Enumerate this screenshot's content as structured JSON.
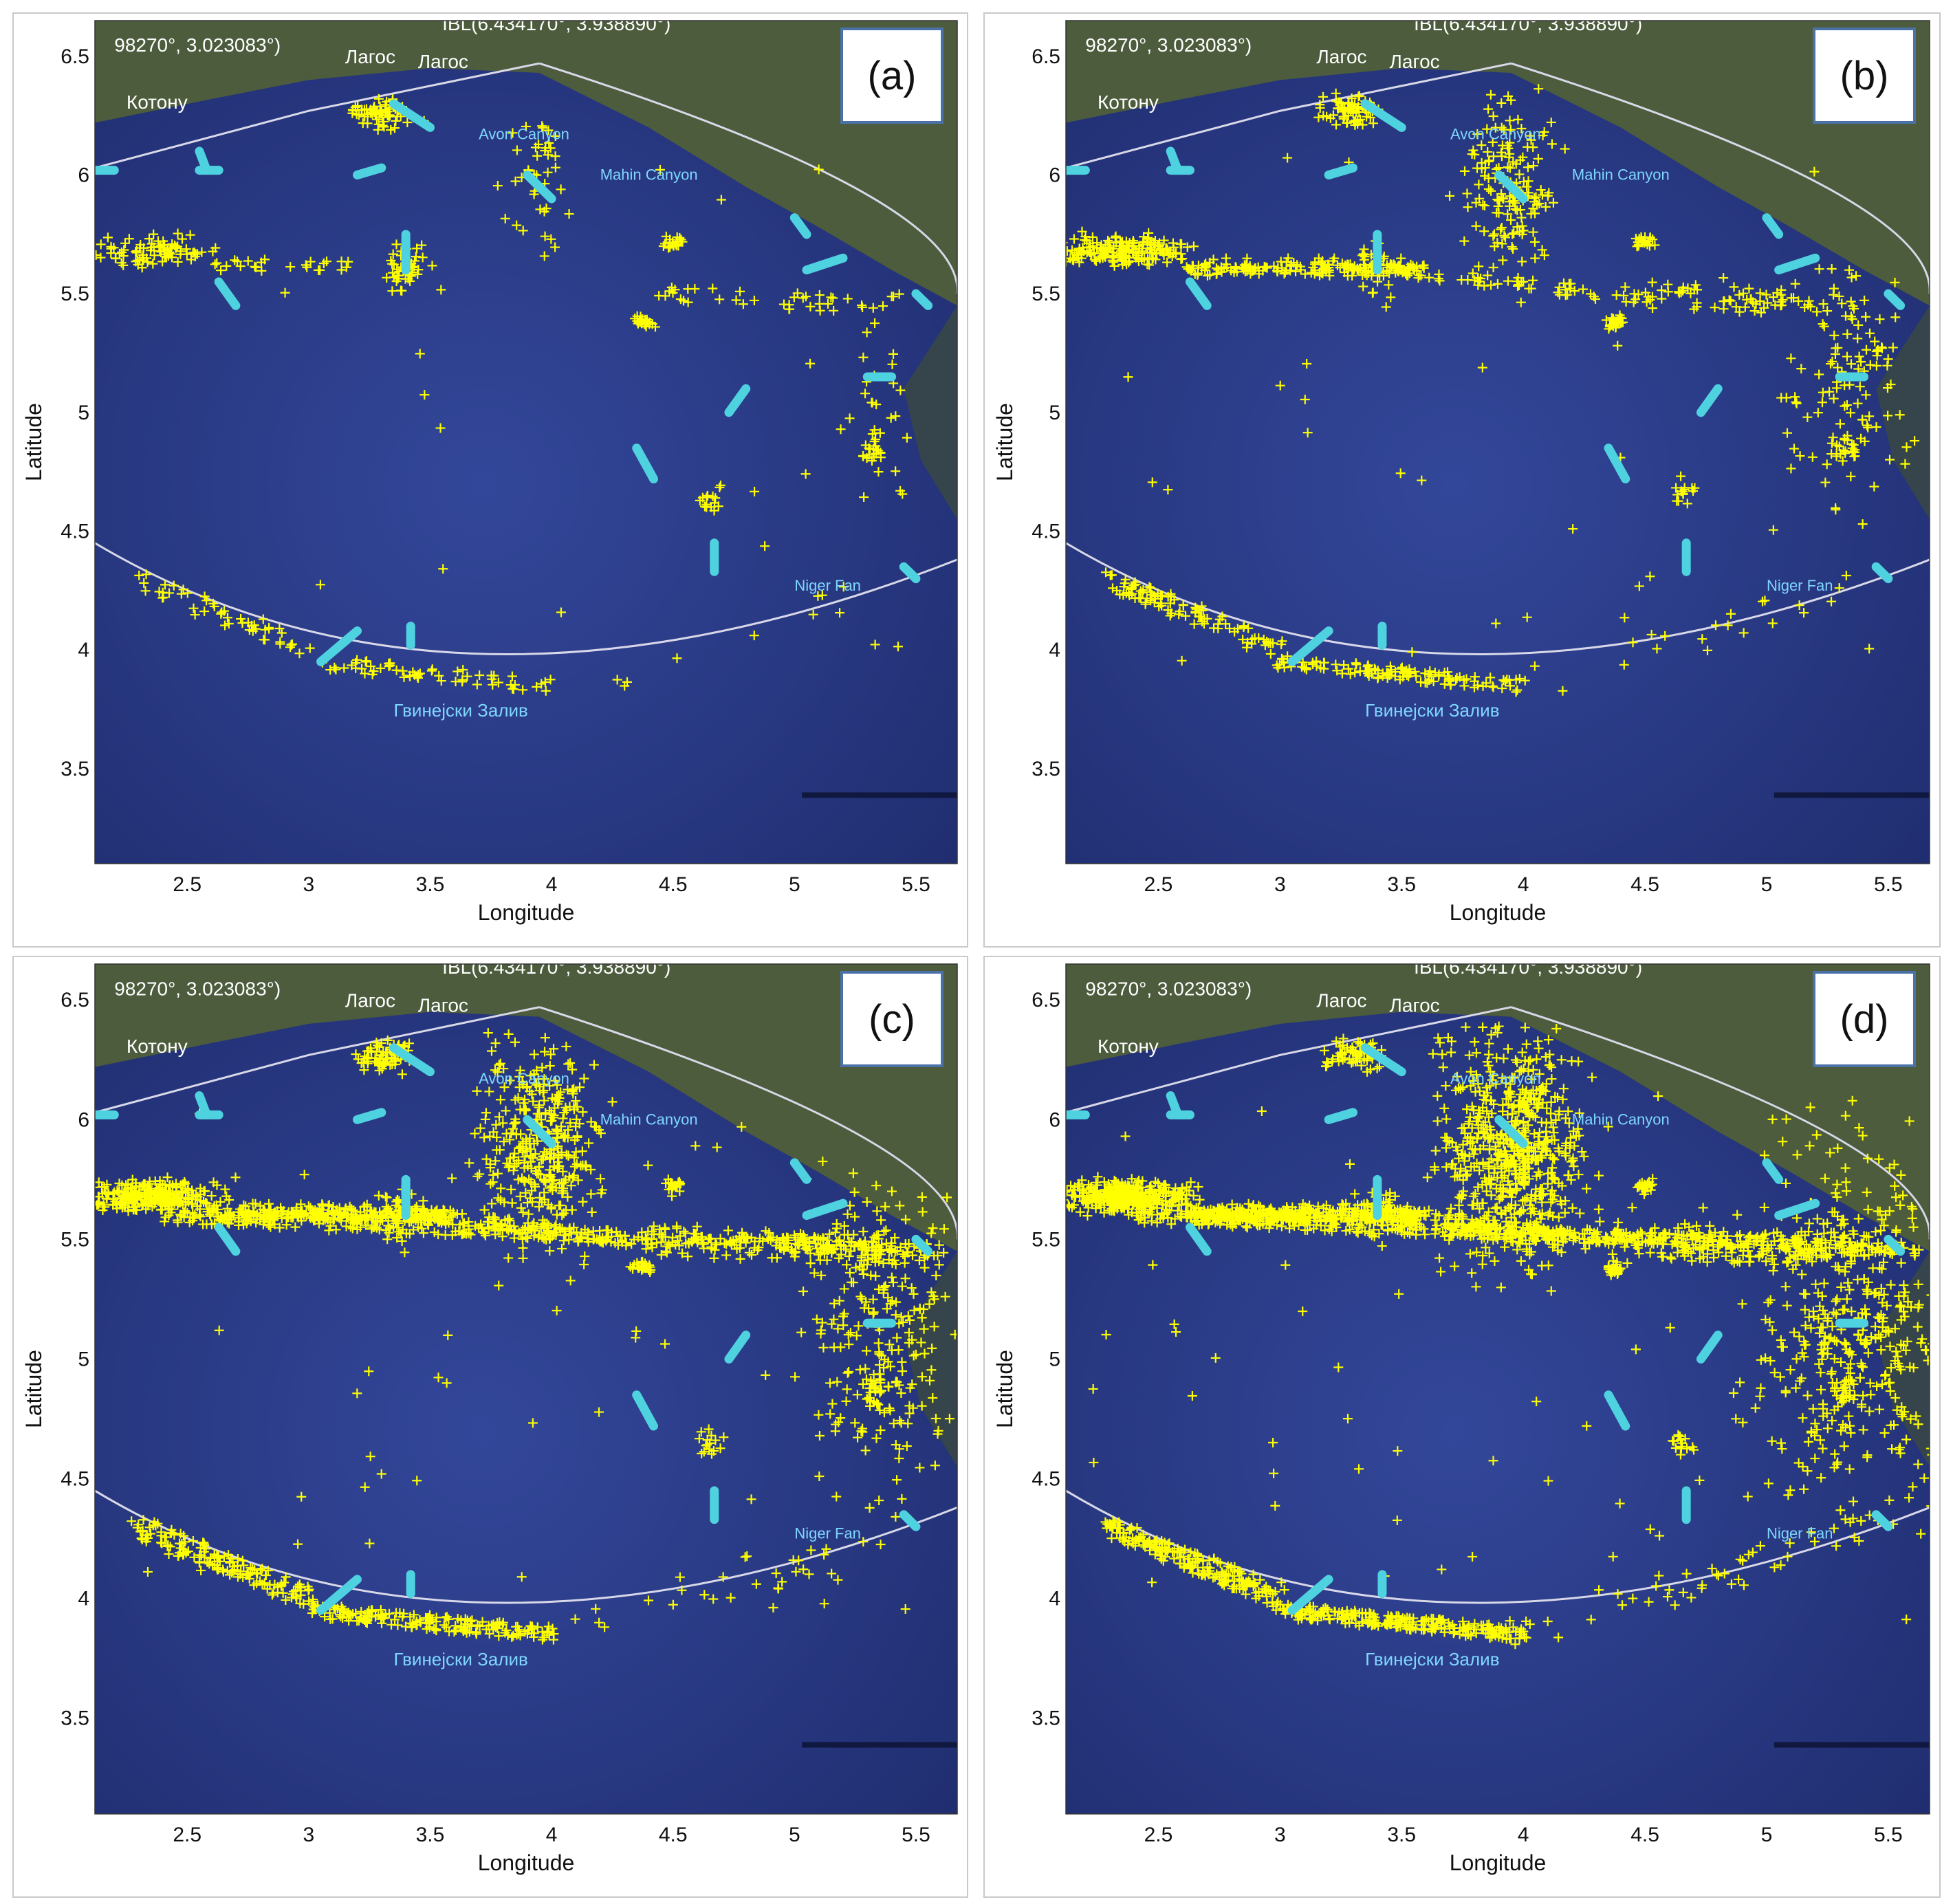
{
  "figure": {
    "xlabel": "Longitude",
    "ylabel": "Latitude",
    "x_ticks": [
      "2.5",
      "3",
      "3.5",
      "4",
      "4.5",
      "5",
      "5.5"
    ],
    "y_ticks": [
      "6.5",
      "6",
      "5.5",
      "5",
      "4.5",
      "4",
      "3.5"
    ],
    "header_left": "98270°, 3.023083°)",
    "header_right": "IBL(6.434170°, 3.938890°)",
    "map_labels": {
      "kotonu": "Котону",
      "lagos1": "Лагос",
      "lagos2": "Лагос",
      "avon": "Avon Canyon",
      "mahin": "Mahin Canyon",
      "niger_fan": "Niger Fan",
      "gulf": "Гвинејски Залив"
    },
    "colors": {
      "ocean": "#2b3d8c",
      "land": "#4a5a3a",
      "detections": "#ffff00",
      "tracks": "#4fd2e0",
      "boundary": "#d8d8e8"
    }
  },
  "panels": [
    {
      "tag": "(a)",
      "density": 1
    },
    {
      "tag": "(b)",
      "density": 2
    },
    {
      "tag": "(c)",
      "density": 3
    },
    {
      "tag": "(d)",
      "density": 4
    }
  ],
  "chart_data": {
    "type": "scatter",
    "xlabel": "Longitude",
    "ylabel": "Latitude",
    "xlim": [
      2.12,
      5.67
    ],
    "ylim": [
      3.1,
      6.65
    ],
    "reference_point": {
      "label": "IBL",
      "lat": 6.43417,
      "lon": 3.93889
    },
    "series": [
      {
        "name": "",
        "type": "detections",
        "marker": "+",
        "color": "#ffff00"
      },
      {
        "name": "",
        "type": "tracks",
        "color": "#4fd2e0"
      }
    ]
  }
}
